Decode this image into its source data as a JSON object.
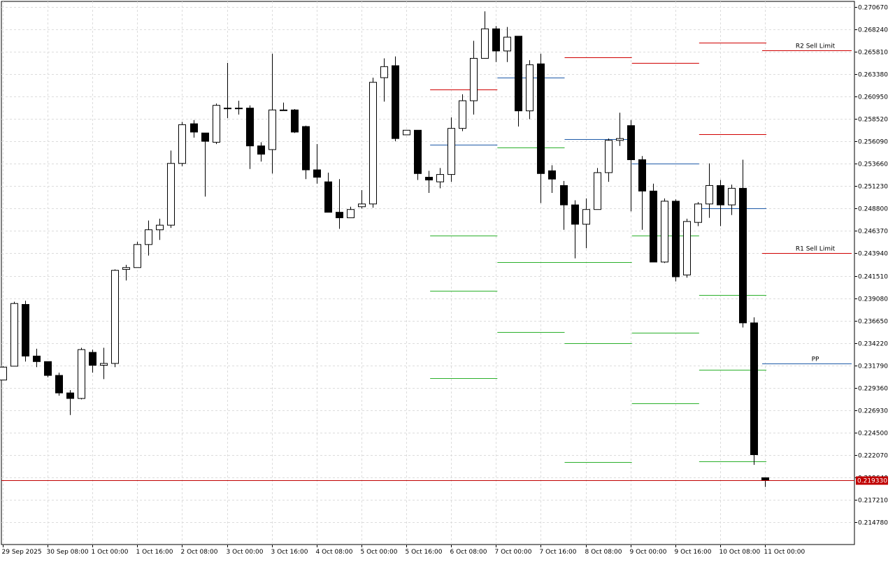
{
  "chart_data": {
    "type": "candlestick",
    "title": "",
    "y_ticks": [
      0.27067,
      0.26824,
      0.26581,
      0.26338,
      0.26095,
      0.25852,
      0.25609,
      0.25366,
      0.25123,
      0.2488,
      0.24637,
      0.24394,
      0.24151,
      0.23908,
      0.23665,
      0.23422,
      0.23179,
      0.22936,
      0.22693,
      0.2245,
      0.22207,
      0.21964,
      0.21721,
      0.21478
    ],
    "y_tick_labels": [
      "0.270670",
      "0.268240",
      "0.265810",
      "0.263380",
      "0.260950",
      "0.258520",
      "0.256090",
      "0.253660",
      "0.251230",
      "0.248800",
      "0.246370",
      "0.243940",
      "0.241510",
      "0.239080",
      "0.236650",
      "0.234220",
      "0.231790",
      "0.229360",
      "0.226930",
      "0.224500",
      "0.222070",
      "0.219640",
      "0.217210",
      "0.214780"
    ],
    "x_labels": [
      {
        "bar": 0,
        "label": "29 Sep 2025"
      },
      {
        "bar": 4,
        "label": "30 Sep 08:00"
      },
      {
        "bar": 8,
        "label": "1 Oct 00:00"
      },
      {
        "bar": 12,
        "label": "1 Oct 16:00"
      },
      {
        "bar": 16,
        "label": "2 Oct 08:00"
      },
      {
        "bar": 20,
        "label": "3 Oct 00:00"
      },
      {
        "bar": 24,
        "label": "3 Oct 16:00"
      },
      {
        "bar": 28,
        "label": "4 Oct 08:00"
      },
      {
        "bar": 32,
        "label": "5 Oct 00:00"
      },
      {
        "bar": 36,
        "label": "5 Oct 16:00"
      },
      {
        "bar": 40,
        "label": "6 Oct 08:00"
      },
      {
        "bar": 44,
        "label": "7 Oct 00:00"
      },
      {
        "bar": 48,
        "label": "7 Oct 16:00"
      },
      {
        "bar": 52,
        "label": "8 Oct 08:00"
      },
      {
        "bar": 56,
        "label": "9 Oct 00:00"
      },
      {
        "bar": 60,
        "label": "9 Oct 16:00"
      },
      {
        "bar": 64,
        "label": "10 Oct 08:00"
      },
      {
        "bar": 68,
        "label": "11 Oct 00:00"
      }
    ],
    "candles": [
      [
        0.2302,
        0.2316,
        0.2302,
        0.2317
      ],
      [
        0.2317,
        0.2385,
        0.2317,
        0.2387
      ],
      [
        0.2384,
        0.2328,
        0.2388,
        0.2322
      ],
      [
        0.2328,
        0.2322,
        0.2336,
        0.2316
      ],
      [
        0.2322,
        0.2307,
        0.2322,
        0.2305
      ],
      [
        0.2307,
        0.2288,
        0.231,
        0.2285
      ],
      [
        0.2288,
        0.2282,
        0.2291,
        0.2264
      ],
      [
        0.2282,
        0.2335,
        0.2337,
        0.2281
      ],
      [
        0.2332,
        0.2318,
        0.2335,
        0.231
      ],
      [
        0.2318,
        0.232,
        0.2337,
        0.2303
      ],
      [
        0.232,
        0.2421,
        0.2422,
        0.2316
      ],
      [
        0.2422,
        0.2424,
        0.2427,
        0.241
      ],
      [
        0.2424,
        0.2449,
        0.2452,
        0.2424
      ],
      [
        0.2449,
        0.2465,
        0.2475,
        0.2437
      ],
      [
        0.2465,
        0.247,
        0.2477,
        0.2454
      ],
      [
        0.247,
        0.2537,
        0.2551,
        0.2467
      ],
      [
        0.2537,
        0.2579,
        0.2582,
        0.2534
      ],
      [
        0.258,
        0.2571,
        0.2584,
        0.2565
      ],
      [
        0.257,
        0.2561,
        0.257,
        0.2501
      ],
      [
        0.256,
        0.26,
        0.2602,
        0.2558
      ],
      [
        0.2597,
        0.2597,
        0.2646,
        0.2586
      ],
      [
        0.2597,
        0.2597,
        0.2605,
        0.259
      ],
      [
        0.2597,
        0.2556,
        0.26,
        0.2531
      ],
      [
        0.2556,
        0.2547,
        0.256,
        0.2539
      ],
      [
        0.2552,
        0.2595,
        0.2656,
        0.2526
      ],
      [
        0.2595,
        0.2595,
        0.2603,
        0.2595
      ],
      [
        0.2595,
        0.2571,
        0.2596,
        0.257
      ],
      [
        0.2577,
        0.253,
        0.2578,
        0.252
      ],
      [
        0.253,
        0.2522,
        0.2558,
        0.2515
      ],
      [
        0.2517,
        0.2484,
        0.2527,
        0.2484
      ],
      [
        0.2484,
        0.2478,
        0.252,
        0.2466
      ],
      [
        0.2478,
        0.2487,
        0.249,
        0.2478
      ],
      [
        0.249,
        0.2493,
        0.2508,
        0.2488
      ],
      [
        0.2493,
        0.2625,
        0.263,
        0.2489
      ],
      [
        0.263,
        0.2642,
        0.2651,
        0.2604
      ],
      [
        0.2643,
        0.2564,
        0.2653,
        0.2561
      ],
      [
        0.2568,
        0.2573,
        0.2573,
        0.2568
      ],
      [
        0.2573,
        0.2526,
        0.2573,
        0.2519
      ],
      [
        0.2522,
        0.2519,
        0.2529,
        0.2505
      ],
      [
        0.2517,
        0.2525,
        0.2532,
        0.251
      ],
      [
        0.2525,
        0.2575,
        0.2587,
        0.2517
      ],
      [
        0.2575,
        0.2605,
        0.2612,
        0.2572
      ],
      [
        0.2605,
        0.2651,
        0.267,
        0.259
      ],
      [
        0.2651,
        0.2683,
        0.2702,
        0.2651
      ],
      [
        0.2683,
        0.2659,
        0.2686,
        0.2647
      ],
      [
        0.2659,
        0.2674,
        0.2685,
        0.2647
      ],
      [
        0.2675,
        0.2594,
        0.2675,
        0.2577
      ],
      [
        0.2594,
        0.2644,
        0.2649,
        0.2585
      ],
      [
        0.2645,
        0.2526,
        0.2656,
        0.2494
      ],
      [
        0.2529,
        0.252,
        0.2535,
        0.2505
      ],
      [
        0.2513,
        0.2492,
        0.2518,
        0.2465
      ],
      [
        0.2492,
        0.2471,
        0.2497,
        0.2434
      ],
      [
        0.2471,
        0.2487,
        0.2499,
        0.2445
      ],
      [
        0.2487,
        0.2527,
        0.2532,
        0.2487
      ],
      [
        0.2527,
        0.2562,
        0.2564,
        0.2517
      ],
      [
        0.2562,
        0.2564,
        0.2592,
        0.2556
      ],
      [
        0.2578,
        0.2541,
        0.2584,
        0.2485
      ],
      [
        0.2541,
        0.2507,
        0.2545,
        0.2465
      ],
      [
        0.2507,
        0.243,
        0.2515,
        0.243
      ],
      [
        0.243,
        0.2496,
        0.2499,
        0.2429
      ],
      [
        0.2496,
        0.2414,
        0.2498,
        0.2409
      ],
      [
        0.2416,
        0.2474,
        0.2477,
        0.2413
      ],
      [
        0.2473,
        0.2493,
        0.2495,
        0.2469
      ],
      [
        0.2493,
        0.2513,
        0.2537,
        0.2478
      ],
      [
        0.2513,
        0.2492,
        0.2519,
        0.2469
      ],
      [
        0.2492,
        0.251,
        0.2514,
        0.2481
      ],
      [
        0.251,
        0.2364,
        0.2541,
        0.2359
      ],
      [
        0.2364,
        0.2221,
        0.237,
        0.221
      ],
      [
        0.2196,
        0.2193,
        0.2196,
        0.2186
      ]
    ],
    "level_lines": [
      {
        "kind": "resistance",
        "bar_start": 38,
        "bar_end": 44,
        "value": 0.2617
      },
      {
        "kind": "pivot",
        "bar_start": 38,
        "bar_end": 44,
        "value": 0.2557
      },
      {
        "kind": "support",
        "bar_start": 38,
        "bar_end": 44,
        "value": 0.2459
      },
      {
        "kind": "support",
        "bar_start": 38,
        "bar_end": 44,
        "value": 0.2399
      },
      {
        "kind": "support",
        "bar_start": 38,
        "bar_end": 44,
        "value": 0.2304
      },
      {
        "kind": "pivot",
        "bar_start": 44,
        "bar_end": 50,
        "value": 0.263
      },
      {
        "kind": "support",
        "bar_start": 44,
        "bar_end": 50,
        "value": 0.2554
      },
      {
        "kind": "support",
        "bar_start": 44,
        "bar_end": 50,
        "value": 0.243
      },
      {
        "kind": "support",
        "bar_start": 44,
        "bar_end": 50,
        "value": 0.2354
      },
      {
        "kind": "resistance",
        "bar_start": 50,
        "bar_end": 56,
        "value": 0.2652
      },
      {
        "kind": "pivot",
        "bar_start": 50,
        "bar_end": 56,
        "value": 0.2563
      },
      {
        "kind": "support",
        "bar_start": 50,
        "bar_end": 56,
        "value": 0.243
      },
      {
        "kind": "support",
        "bar_start": 50,
        "bar_end": 56,
        "value": 0.2342
      },
      {
        "kind": "support",
        "bar_start": 50,
        "bar_end": 56,
        "value": 0.2213
      },
      {
        "kind": "resistance",
        "bar_start": 56,
        "bar_end": 62,
        "value": 0.2646
      },
      {
        "kind": "pivot",
        "bar_start": 56,
        "bar_end": 62,
        "value": 0.2537
      },
      {
        "kind": "support",
        "bar_start": 56,
        "bar_end": 62,
        "value": 0.2459
      },
      {
        "kind": "support",
        "bar_start": 56,
        "bar_end": 62,
        "value": 0.2353
      },
      {
        "kind": "support",
        "bar_start": 56,
        "bar_end": 62,
        "value": 0.2277
      },
      {
        "kind": "resistance",
        "bar_start": 62,
        "bar_end": 68,
        "value": 0.2668
      },
      {
        "kind": "resistance",
        "bar_start": 62,
        "bar_end": 68,
        "value": 0.2569
      },
      {
        "kind": "pivot",
        "bar_start": 62,
        "bar_end": 68,
        "value": 0.2488
      },
      {
        "kind": "support",
        "bar_start": 62,
        "bar_end": 68,
        "value": 0.2394
      },
      {
        "kind": "support",
        "bar_start": 62,
        "bar_end": 68,
        "value": 0.2313
      },
      {
        "kind": "support",
        "bar_start": 62,
        "bar_end": 68,
        "value": 0.2214
      }
    ],
    "labeled_lines": [
      {
        "label": "R2 Sell Limit",
        "value": 0.266,
        "color": "#d00000"
      },
      {
        "label": "R1 Sell Limit",
        "value": 0.244,
        "color": "#d00000"
      },
      {
        "label": "PP",
        "value": 0.232,
        "color": "#1e5aa8"
      }
    ],
    "current_price": {
      "value": 0.21933,
      "label": "0.219330"
    },
    "colors": {
      "bull_fill": "#ffffff",
      "bear_fill": "#000000",
      "wick": "#000000",
      "grid": "#dcdcdc",
      "resistance": "#d00000",
      "pivot": "#1e5aa8",
      "support": "#2ab02a",
      "current": "#c00000"
    },
    "grid": true
  }
}
